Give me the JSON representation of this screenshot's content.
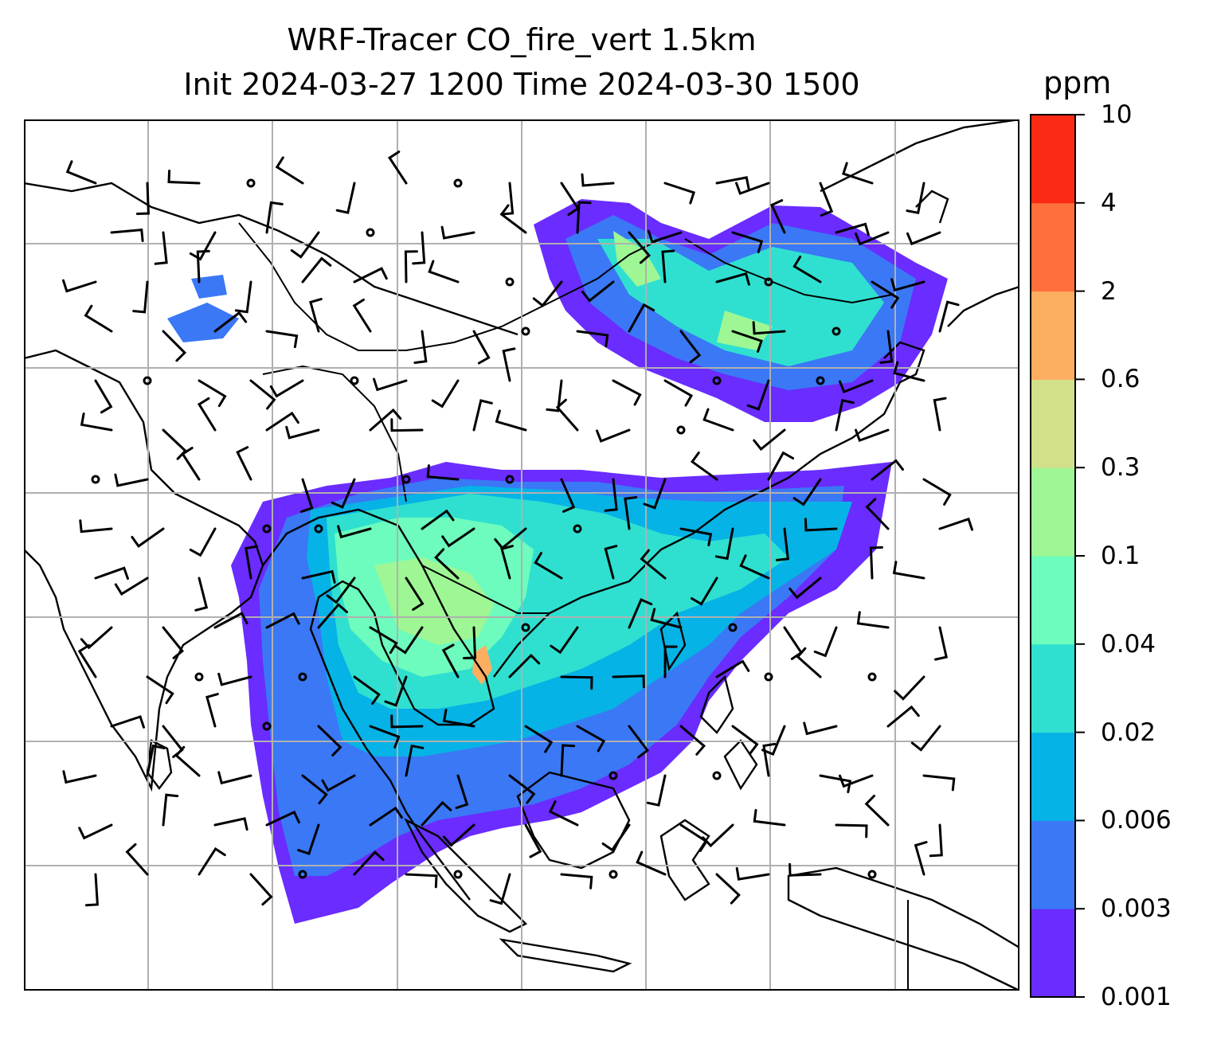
{
  "title": {
    "line1": "WRF-Tracer CO_fire_vert 1.5km",
    "line2": "Init 2024-03-27 1200 Time 2024-03-30 1500"
  },
  "colorbar": {
    "unit": "ppm",
    "levels": [
      "0.001",
      "0.003",
      "0.006",
      "0.02",
      "0.04",
      "0.1",
      "0.3",
      "0.6",
      "2",
      "4",
      "10"
    ],
    "colors": [
      "#6a2cff",
      "#3a78f5",
      "#06b3e6",
      "#2fe0d0",
      "#6dfcbd",
      "#9ef794",
      "#d2e08a",
      "#fdae61",
      "#ff6f3c",
      "#fb2a15"
    ]
  },
  "map": {
    "features": [
      "coastlines",
      "country-borders",
      "gridlines",
      "wind-barbs",
      "calm-wind-circles",
      "tracer-shading"
    ],
    "colors": {
      "gridline": "#b0b0b0",
      "coastline": "#000000",
      "frame": "#000000"
    }
  }
}
